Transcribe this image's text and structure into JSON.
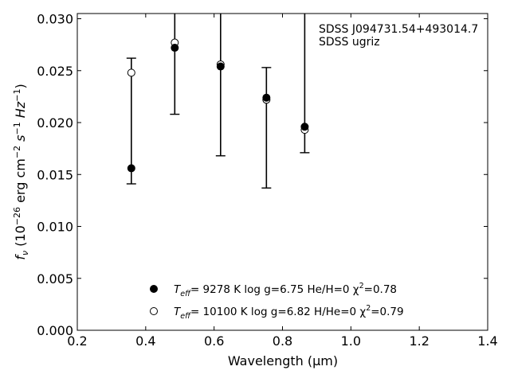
{
  "chart_data": {
    "type": "scatter",
    "xlabel": "Wavelength (μm)",
    "ylabel_parts": {
      "f": "f",
      "nu": "ν",
      "unit_open": " (10",
      "exp": "−26",
      "unit_mid": " erg cm",
      "cm_exp": "−2",
      "s": " s",
      "s_exp": "−1",
      "hz": " Hz",
      "hz_exp": "−1",
      "close": ")"
    },
    "xlim": [
      0.2,
      1.4
    ],
    "ylim": [
      0.0,
      0.0305
    ],
    "xticks": [
      0.2,
      0.4,
      0.6,
      0.8,
      1.0,
      1.2,
      1.4
    ],
    "xtick_labels": [
      "0.2",
      "0.4",
      "0.6",
      "0.8",
      "1.0",
      "1.2",
      "1.4"
    ],
    "yticks": [
      0.0,
      0.005,
      0.01,
      0.015,
      0.02,
      0.025,
      0.03
    ],
    "ytick_labels": [
      "0.000",
      "0.005",
      "0.010",
      "0.015",
      "0.020",
      "0.025",
      "0.030"
    ],
    "annotation_lines": [
      "SDSS J094731.54+493014.7",
      "SDSS ugriz"
    ],
    "legend_position": "bottom-center",
    "observed": {
      "x": [
        0.3551,
        0.4686,
        0.6166,
        0.748,
        0.8932
      ],
      "y": [
        0.0156,
        0.0272,
        0.0254,
        0.0224,
        0.0196
      ],
      "err_low": [
        0.0141,
        0.0208,
        0.0168,
        0.0137,
        0.0171
      ],
      "err_high": [
        0.0262,
        0.0305,
        0.0305,
        0.0253,
        0.0305
      ],
      "x_plot": [
        0.358,
        0.485,
        0.619,
        0.753,
        0.865
      ]
    },
    "series": [
      {
        "marker": "filled-circle",
        "legend_parts": {
          "t": "T",
          "sub": "eff",
          "body": "=  9278 K  log g=6.75  He/H=0  χ",
          "sup": "2",
          "tail": "=0.78"
        },
        "x": [
          0.358,
          0.485,
          0.619,
          0.753,
          0.865
        ],
        "y": [
          0.0156,
          0.0272,
          0.0254,
          0.0224,
          0.0196
        ]
      },
      {
        "marker": "open-circle",
        "legend_parts": {
          "t": "T",
          "sub": "eff",
          "body": "= 10100 K  log g=6.82  H/He=0  χ",
          "sup": "2",
          "tail": "=0.79"
        },
        "x": [
          0.358,
          0.485,
          0.619,
          0.753,
          0.865
        ],
        "y": [
          0.0248,
          0.0277,
          0.0256,
          0.0222,
          0.0193
        ]
      }
    ]
  }
}
